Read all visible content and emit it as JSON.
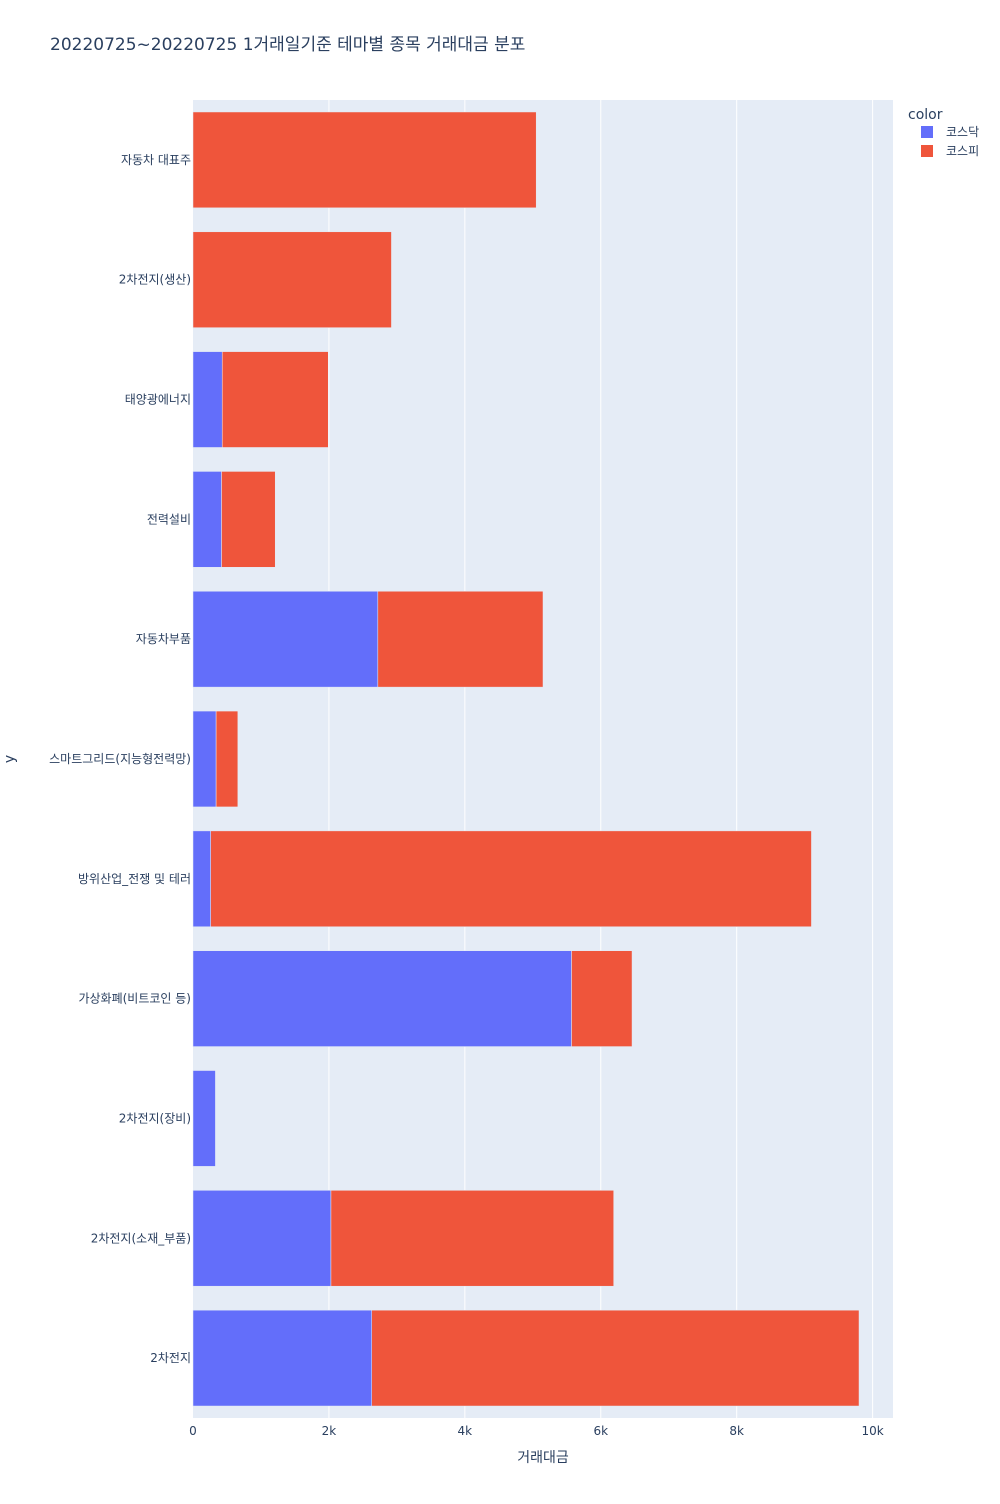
{
  "chart_data": {
    "type": "bar",
    "orientation": "horizontal",
    "barmode": "stack",
    "title": "20220725~20220725 1거래일기준 테마별 종목 거래대금 분포",
    "xlabel": "거래대금",
    "ylabel": "y",
    "xlim": [
      0,
      10300
    ],
    "x_ticks": [
      0,
      2000,
      4000,
      6000,
      8000,
      10000
    ],
    "x_tick_labels": [
      "0",
      "2k",
      "4k",
      "6k",
      "8k",
      "10k"
    ],
    "grid": true,
    "legend_title": "color",
    "legend_position": "top-right",
    "categories": [
      "자동차 대표주",
      "2차전지(생산)",
      "태양광에너지",
      "전력설비",
      "자동차부품",
      "스마트그리드(지능형전력망)",
      "방위산업_전쟁 및 테러",
      "가상화폐(비트코인 등)",
      "2차전지(장비)",
      "2차전지(소재_부품)",
      "2차전지"
    ],
    "series": [
      {
        "name": "코스닥",
        "color": "#636efa",
        "values": [
          0,
          0,
          430,
          420,
          2720,
          340,
          260,
          5570,
          330,
          2030,
          2630
        ]
      },
      {
        "name": "코스피",
        "color": "#ef553b",
        "values": [
          5050,
          2920,
          1560,
          790,
          2430,
          320,
          8840,
          890,
          0,
          4160,
          7170
        ]
      }
    ]
  }
}
